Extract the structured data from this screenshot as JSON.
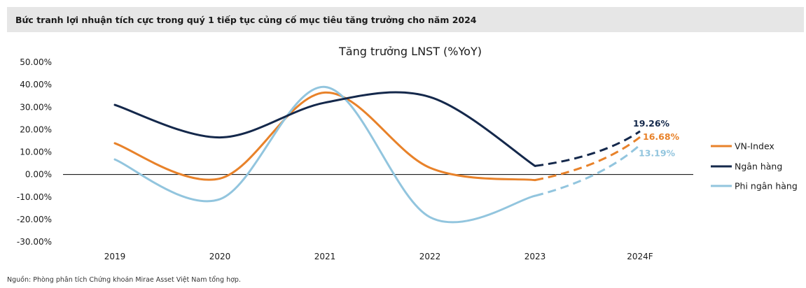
{
  "header": {
    "title": "Bức tranh lợi nhuận tích cực trong quý 1 tiếp tục củng cố mục tiêu tăng trưởng cho năm 2024"
  },
  "footer": {
    "source": "Nguồn: Phòng phân tích Chứng khoán Mirae Asset Việt Nam tổng hợp."
  },
  "chart_data": {
    "type": "line",
    "title": "Tăng trưởng LNST (%YoY)",
    "categories": [
      "2019",
      "2020",
      "2021",
      "2022",
      "2023",
      "2024F"
    ],
    "y_tick_labels": [
      "50.00%",
      "40.00%",
      "30.00%",
      "20.00%",
      "10.00%",
      "0.00%",
      "-10.00%",
      "-20.00%",
      "-30.00%"
    ],
    "ylim": [
      -30,
      50
    ],
    "grid": false,
    "legend_position": "right",
    "forecast_dashed": true,
    "series": [
      {
        "name": "VN-Index",
        "color": "#e8822a",
        "values": [
          13.9,
          -1.8,
          36.5,
          3.0,
          -2.5,
          16.68
        ],
        "end_label": "16.68%"
      },
      {
        "name": "Ngân hàng",
        "color": "#14284b",
        "values": [
          31.0,
          16.5,
          32.0,
          34.5,
          3.8,
          19.26
        ],
        "end_label": "19.26%"
      },
      {
        "name": "Phi ngân hàng",
        "color": "#92c5de",
        "values": [
          6.7,
          -11.0,
          39.0,
          -19.0,
          -9.5,
          13.19
        ],
        "end_label": "13.19%"
      }
    ]
  }
}
